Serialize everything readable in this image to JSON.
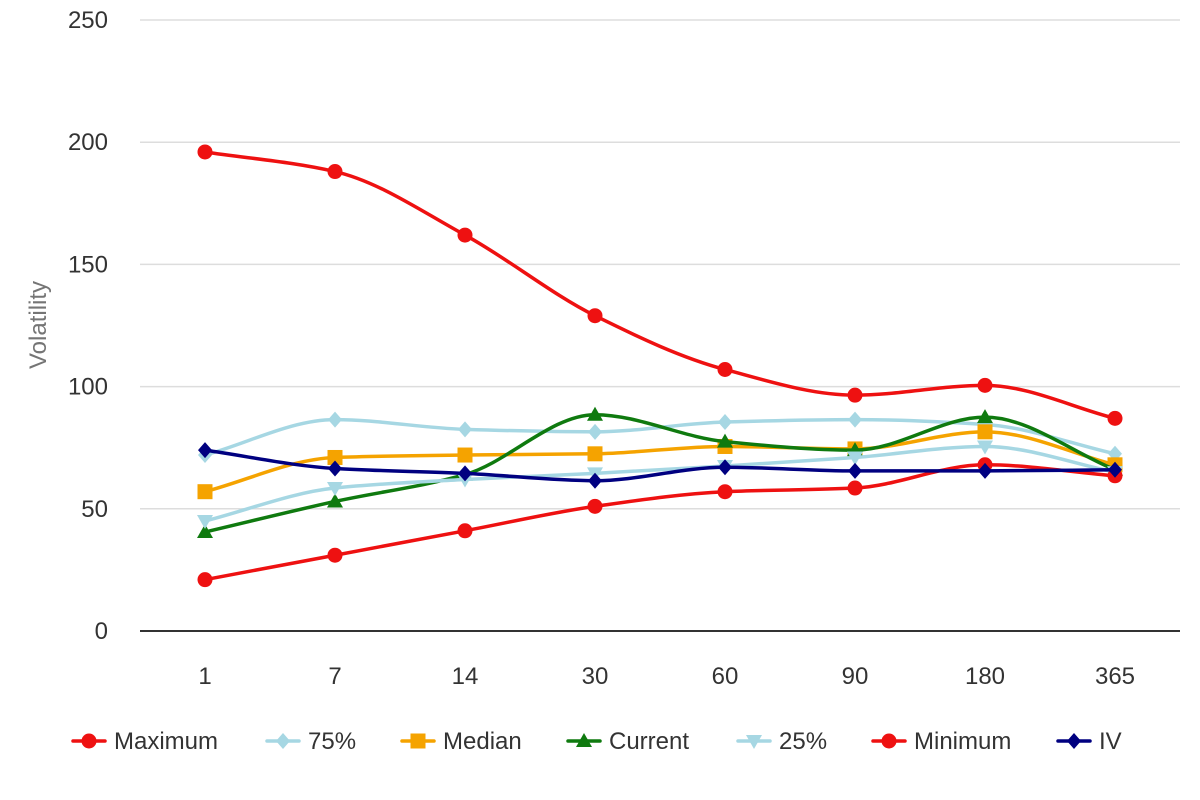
{
  "chart_data": {
    "type": "line",
    "title": "",
    "xlabel": "",
    "ylabel": "Volatility",
    "categories": [
      "1",
      "7",
      "14",
      "30",
      "60",
      "90",
      "180",
      "365"
    ],
    "ylim": [
      0,
      250
    ],
    "yticks": [
      0,
      50,
      100,
      150,
      200,
      250
    ],
    "grid": true,
    "legend": "bottom",
    "series": [
      {
        "name": "Maximum",
        "color": "#ee1111",
        "marker": "circle",
        "values": [
          196,
          188,
          162,
          129,
          107,
          96.5,
          100.5,
          87
        ]
      },
      {
        "name": "75%",
        "color": "#a6d7e3",
        "marker": "diamond",
        "values": [
          72,
          86.5,
          82.5,
          81.5,
          85.5,
          86.5,
          84.5,
          72.5
        ]
      },
      {
        "name": "Median",
        "color": "#f5a300",
        "marker": "square",
        "values": [
          57,
          71,
          72,
          72.5,
          75.5,
          74.5,
          81.5,
          68
        ]
      },
      {
        "name": "Current",
        "color": "#0f7a0f",
        "marker": "triangle-up",
        "values": [
          40.5,
          53,
          64,
          88.5,
          77.5,
          74,
          87.5,
          66
        ]
      },
      {
        "name": "25%",
        "color": "#a6d7e3",
        "marker": "triangle-down",
        "values": [
          45,
          58.5,
          62,
          64.5,
          67.5,
          71,
          75.5,
          65
        ]
      },
      {
        "name": "Minimum",
        "color": "#ee1111",
        "marker": "circle",
        "values": [
          21,
          31,
          41,
          51,
          57,
          58.5,
          68,
          63.5
        ]
      },
      {
        "name": "IV",
        "color": "#000080",
        "marker": "diamond",
        "values": [
          74,
          66.5,
          64.5,
          61.5,
          67,
          65.5,
          65.5,
          66
        ]
      }
    ]
  }
}
